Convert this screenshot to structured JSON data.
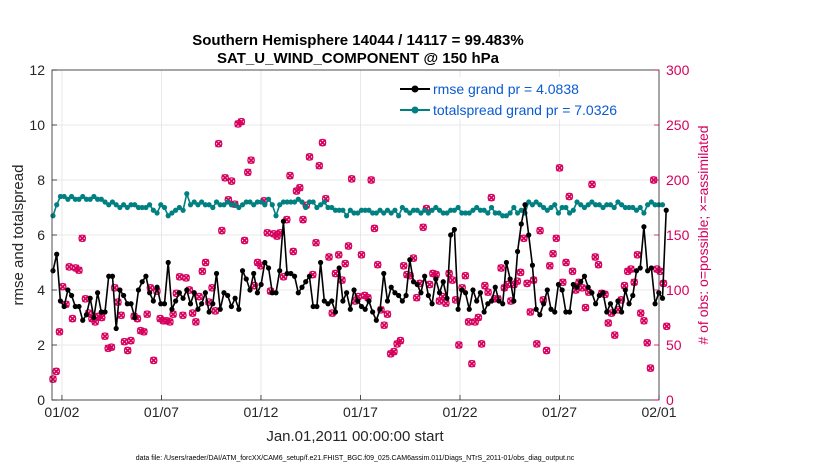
{
  "chart_data": {
    "type": "line",
    "title_line1": "Southern Hemisphere 14044 / 14117 = 99.483%",
    "title_line2": "SAT_U_WIND_COMPONENT @ 150 hPa",
    "xlabel": "Jan.01,2011 00:00:00 start",
    "ylabel": "rmse and totalspread",
    "ylabel_right": "# of obs: o=possible; ×=assimilated",
    "footer": "data file: /Users/raeder/DAI/ATM_forcXX/CAM6_setup/f.e21.FHIST_BGC.f09_025.CAM6assim.011/Diags_NTrS_2011-01/obs_diag_output.nc",
    "xlim": [
      0.5,
      31.0
    ],
    "ylim": [
      0,
      12
    ],
    "ylim_right": [
      0,
      300
    ],
    "x_ticks": [
      1,
      6,
      11,
      16,
      21,
      26,
      31
    ],
    "x_tick_labels": [
      "01/02",
      "01/07",
      "01/12",
      "01/17",
      "01/22",
      "01/27",
      "02/01"
    ],
    "y_ticks": [
      0,
      2,
      4,
      6,
      8,
      10,
      12
    ],
    "y_ticks_right": [
      0,
      50,
      100,
      150,
      200,
      250,
      300
    ],
    "grid": true,
    "legend_position": "top-right",
    "colors": {
      "rmse": "#000000",
      "spread": "#008080",
      "obs": "#d6005d",
      "legend_text": "#0a5ad2"
    },
    "series": [
      {
        "name": "rmse grand pr = 4.0838",
        "axis": "left",
        "values": [
          4.7,
          5.3,
          3.6,
          3.4,
          4.0,
          3.8,
          3.4,
          3.4,
          2.9,
          3.1,
          3.7,
          3.0,
          3.9,
          3.2,
          3.2,
          4.5,
          4.5,
          2.6,
          4.0,
          3.8,
          3.5,
          3.5,
          3.0,
          4.0,
          4.3,
          4.5,
          3.9,
          3.6,
          4.1,
          3.5,
          3.5,
          5.0,
          3.3,
          3.6,
          3.9,
          3.7,
          4.0,
          3.5,
          3.9,
          3.3,
          3.5,
          3.9,
          3.2,
          3.5,
          4.6,
          3.3,
          3.9,
          3.8,
          3.4,
          3.7,
          3.3,
          4.7,
          4.4,
          4.0,
          4.6,
          3.9,
          4.2,
          5.0,
          4.8,
          3.9,
          3.9,
          4.7,
          6.5,
          4.6,
          4.6,
          4.5,
          3.9,
          4.1,
          4.3,
          4.5,
          3.4,
          3.4,
          5.0,
          3.6,
          3.5,
          3.6,
          3.2,
          4.8,
          3.6,
          3.9,
          3.3,
          4.0,
          3.6,
          3.4,
          3.3,
          3.6,
          3.2,
          2.9,
          3.3,
          4.6,
          3.6,
          4.1,
          3.9,
          3.8,
          3.6,
          3.8,
          5.1,
          4.3,
          4.2,
          3.9,
          4.5,
          3.8,
          3.5,
          4.4,
          3.9,
          4.3,
          3.7,
          6.0,
          6.2,
          3.3,
          4.0,
          3.9,
          3.3,
          4.0,
          3.6,
          3.9,
          3.2,
          3.5,
          3.6,
          4.1,
          3.6,
          3.5,
          5.0,
          4.4,
          3.6,
          5.4,
          6.4,
          7.1,
          6.0,
          4.9,
          3.3,
          3.1,
          3.5,
          4.0,
          3.3,
          3.2,
          4.2,
          4.0,
          3.2,
          3.2,
          4.2,
          4.1,
          4.3,
          4.5,
          4.1,
          3.9,
          3.5,
          3.8,
          3.9,
          3.2,
          3.5,
          3.2,
          3.6,
          3.2,
          4.0,
          3.5,
          3.8,
          4.7,
          4.8,
          6.3,
          4.7,
          4.8,
          3.5,
          3.9,
          3.7,
          6.9
        ]
      },
      {
        "name": "totalspread grand pr = 7.0326",
        "axis": "left",
        "values": [
          6.7,
          7.1,
          7.4,
          7.4,
          7.3,
          7.4,
          7.3,
          7.3,
          7.4,
          7.3,
          7.3,
          7.4,
          7.3,
          7.3,
          7.2,
          7.1,
          7.2,
          7.1,
          7.0,
          7.1,
          7.0,
          7.1,
          7.1,
          7.0,
          7.0,
          7.0,
          7.1,
          6.9,
          6.8,
          7.1,
          7.0,
          6.7,
          6.8,
          6.9,
          7.0,
          6.9,
          7.5,
          7.1,
          7.2,
          7.1,
          7.2,
          7.1,
          7.1,
          7.0,
          7.2,
          7.1,
          7.1,
          7.2,
          7.1,
          7.1,
          7.0,
          7.1,
          7.2,
          7.2,
          7.1,
          7.2,
          7.2,
          7.1,
          7.3,
          7.1,
          6.7,
          7.1,
          7.2,
          7.2,
          7.2,
          7.2,
          7.3,
          7.2,
          7.0,
          7.2,
          7.2,
          7.0,
          7.1,
          7.2,
          7.0,
          7.0,
          6.9,
          6.9,
          6.9,
          6.7,
          6.9,
          6.8,
          6.8,
          6.9,
          6.9,
          6.9,
          6.8,
          6.8,
          6.9,
          6.8,
          6.9,
          6.8,
          6.9,
          6.7,
          7.0,
          6.9,
          6.8,
          6.9,
          6.9,
          6.8,
          6.9,
          6.8,
          6.9,
          7.0,
          6.9,
          6.8,
          6.8,
          6.9,
          6.9,
          7.0,
          6.8,
          6.8,
          6.8,
          6.9,
          7.0,
          6.9,
          6.9,
          6.8,
          7.0,
          6.8,
          6.8,
          6.7,
          6.7,
          6.8,
          7.0,
          6.8,
          6.9,
          6.8,
          7.2,
          7.1,
          7.2,
          7.1,
          7.0,
          6.9,
          7.0,
          7.1,
          6.8,
          7.0,
          7.0,
          6.8,
          6.9,
          7.2,
          7.1,
          7.0,
          7.1,
          7.2,
          7.1,
          7.1,
          7.0,
          7.1,
          7.1,
          7.0,
          7.2,
          7.1,
          7.0,
          7.0,
          7.0,
          6.9,
          7.0,
          6.8,
          7.1,
          7.2,
          7.1,
          7.1,
          7.1
        ]
      },
      {
        "name": "obs count",
        "axis": "right",
        "values": [
          19,
          26,
          62,
          103,
          87,
          121,
          74,
          120,
          118,
          147,
          92,
          79,
          74,
          71,
          76,
          75,
          58,
          47,
          48,
          102,
          89,
          77,
          53,
          45,
          54,
          76,
          74,
          63,
          62,
          78,
          102,
          36,
          99,
          74,
          72,
          72,
          71,
          78,
          97,
          112,
          77,
          111,
          100,
          79,
          71,
          94,
          117,
          125,
          89,
          102,
          81,
          233,
          154,
          202,
          182,
          199,
          178,
          251,
          253,
          145,
          207,
          218,
          104,
          125,
          122,
          181,
          152,
          99,
          151,
          149,
          152,
          112,
          164,
          204,
          135,
          190,
          193,
          164,
          177,
          221,
          114,
          143,
          213,
          234,
          183,
          130,
          79,
          115,
          132,
          109,
          124,
          140,
          201,
          90,
          94,
          132,
          95,
          93,
          200,
          156,
          123,
          82,
          68,
          78,
          42,
          44,
          51,
          54,
          122,
          114,
          113,
          129,
          93,
          106,
          157,
          174,
          105,
          115,
          114,
          90,
          94,
          88,
          115,
          109,
          91,
          50,
          102,
          113,
          71,
          33,
          71,
          75,
          51,
          104,
          98,
          184,
          92,
          92,
          120,
          102,
          105,
          90,
          105,
          108,
          116,
          147,
          106,
          80,
          109,
          51,
          154,
          91,
          45,
          122,
          133,
          147,
          211,
          107,
          125,
          185,
          117,
          100,
          107,
          102,
          84,
          98,
          196,
          130,
          123,
          97,
          96,
          70,
          79,
          59,
          82,
          91,
          104,
          117,
          119,
          107,
          132,
          79,
          72,
          52,
          29,
          200,
          119,
          117,
          106,
          67
        ]
      }
    ]
  }
}
